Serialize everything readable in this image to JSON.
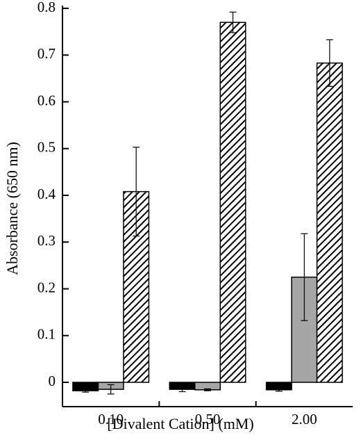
{
  "chart_data": {
    "type": "bar",
    "x_label": "[Divalent Cation] (mM)",
    "y_label": "Absorbance (650 nm)",
    "categories": [
      "0.10",
      "0.50",
      "2.00"
    ],
    "series": [
      {
        "color": "#000000",
        "hatch": false,
        "values": [
          -0.018,
          -0.015,
          -0.016
        ],
        "errors": [
          0.003,
          0.005,
          0.003
        ]
      },
      {
        "color": "#a6a6a6",
        "hatch": false,
        "values": [
          -0.015,
          -0.016,
          0.225
        ],
        "errors": [
          0.01,
          0.002,
          0.093
        ]
      },
      {
        "color": "#000000",
        "hatch": true,
        "values": [
          0.408,
          0.77,
          0.683
        ],
        "errors": [
          0.095,
          0.022,
          0.05
        ]
      }
    ],
    "ylim": [
      -0.052,
      0.8
    ],
    "yticks": [
      0,
      0.1,
      0.2,
      0.3,
      0.4,
      0.5,
      0.6,
      0.7,
      0.8
    ]
  }
}
